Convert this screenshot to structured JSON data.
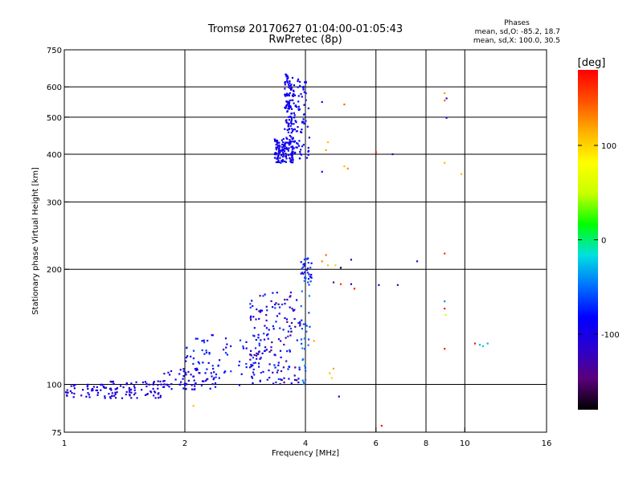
{
  "chart_data": {
    "type": "scatter",
    "title": "Tromsø 20170627 01:04:00-01:05:43",
    "subtitle": "RwPretec (8p)",
    "stats": {
      "heading": "Phases",
      "line1": "mean, sd,O: -85.2, 18.7",
      "line2": "mean, sd,X: 100.0, 30.5"
    },
    "xlabel": "Frequency [MHz]",
    "ylabel": "Stationary phase Virtual Height [km]",
    "x_scale": "log",
    "y_scale": "log",
    "xlim": [
      1,
      16
    ],
    "ylim": [
      75,
      750
    ],
    "x_ticks": [
      {
        "value": 1,
        "label": "1"
      },
      {
        "value": 2,
        "label": "2"
      },
      {
        "value": 4,
        "label": "4"
      },
      {
        "value": 6,
        "label": "6"
      },
      {
        "value": 8,
        "label": "8"
      },
      {
        "value": 10,
        "label": "10"
      },
      {
        "value": 16,
        "label": "16"
      }
    ],
    "y_ticks": [
      {
        "value": 75,
        "label": "75"
      },
      {
        "value": 100,
        "label": "100"
      },
      {
        "value": 200,
        "label": "200"
      },
      {
        "value": 300,
        "label": "300"
      },
      {
        "value": 400,
        "label": "400"
      },
      {
        "value": 500,
        "label": "500"
      },
      {
        "value": 600,
        "label": "600"
      },
      {
        "value": 750,
        "label": "750"
      }
    ],
    "x_gridlines": [
      2,
      4,
      6,
      8,
      10
    ],
    "y_gridlines": [
      100,
      200,
      300,
      400,
      500,
      600
    ],
    "grid": true,
    "colorbar": {
      "title": "[deg]",
      "range": [
        -180,
        180
      ],
      "ticks": [
        {
          "value": 100,
          "label": "100"
        },
        {
          "value": 0,
          "label": "0"
        },
        {
          "value": -100,
          "label": "-100"
        }
      ],
      "colors": [
        "#000000",
        "#5a007a",
        "#2a00d0",
        "#0000ff",
        "#0070ff",
        "#00e0e0",
        "#00ff00",
        "#c8ff00",
        "#ffff00",
        "#ffb000",
        "#ff5000",
        "#ff0000"
      ]
    },
    "clusters": [
      {
        "f": [
          1.0,
          1.35
        ],
        "h": [
          92,
          100
        ],
        "phase": [
          -110,
          -95
        ],
        "n": 50
      },
      {
        "f": [
          1.3,
          1.75
        ],
        "h": [
          92,
          102
        ],
        "phase": [
          -115,
          -95
        ],
        "n": 70
      },
      {
        "f": [
          1.75,
          2.4
        ],
        "h": [
          97,
          110
        ],
        "phase": [
          -115,
          -85
        ],
        "n": 55
      },
      {
        "f": [
          2.0,
          3.1
        ],
        "h": [
          98,
          135
        ],
        "phase": [
          -110,
          -60
        ],
        "n": 85
      },
      {
        "f": [
          2.9,
          3.9
        ],
        "h": [
          100,
          175
        ],
        "phase": [
          -150,
          -60
        ],
        "n": 160
      },
      {
        "f": [
          3.35,
          3.75
        ],
        "h": [
          380,
          440
        ],
        "phase": [
          -110,
          -80
        ],
        "n": 140
      },
      {
        "f": [
          3.55,
          3.75
        ],
        "h": [
          440,
          650
        ],
        "phase": [
          -105,
          -80
        ],
        "n": 110
      },
      {
        "f": [
          3.75,
          4.1
        ],
        "h": [
          390,
          630
        ],
        "phase": [
          -100,
          -75
        ],
        "n": 70
      },
      {
        "f": [
          3.9,
          4.15
        ],
        "h": [
          185,
          215
        ],
        "phase": [
          -110,
          -60
        ],
        "n": 30
      },
      {
        "f": [
          3.9,
          4.1
        ],
        "h": [
          100,
          190
        ],
        "phase": [
          -70,
          -40
        ],
        "n": 30
      }
    ],
    "points": [
      {
        "f": 4.4,
        "h": 548,
        "phase": -120
      },
      {
        "f": 5.0,
        "h": 540,
        "phase": 140
      },
      {
        "f": 4.4,
        "h": 360,
        "phase": -110
      },
      {
        "f": 4.5,
        "h": 410,
        "phase": 120
      },
      {
        "f": 4.55,
        "h": 430,
        "phase": 110
      },
      {
        "f": 5.0,
        "h": 372,
        "phase": 110
      },
      {
        "f": 5.1,
        "h": 367,
        "phase": 130
      },
      {
        "f": 6.0,
        "h": 405,
        "phase": 170
      },
      {
        "f": 6.6,
        "h": 400,
        "phase": -110
      },
      {
        "f": 4.4,
        "h": 210,
        "phase": 130
      },
      {
        "f": 4.5,
        "h": 218,
        "phase": 140
      },
      {
        "f": 4.55,
        "h": 205,
        "phase": 110
      },
      {
        "f": 4.75,
        "h": 205,
        "phase": 100
      },
      {
        "f": 4.9,
        "h": 202,
        "phase": -170
      },
      {
        "f": 5.2,
        "h": 212,
        "phase": -110
      },
      {
        "f": 4.7,
        "h": 185,
        "phase": -140
      },
      {
        "f": 4.9,
        "h": 183,
        "phase": 160
      },
      {
        "f": 5.2,
        "h": 183,
        "phase": -110
      },
      {
        "f": 5.3,
        "h": 178,
        "phase": 170
      },
      {
        "f": 6.1,
        "h": 182,
        "phase": -110
      },
      {
        "f": 6.8,
        "h": 182,
        "phase": -130
      },
      {
        "f": 7.6,
        "h": 210,
        "phase": -120
      },
      {
        "f": 4.2,
        "h": 130,
        "phase": 120
      },
      {
        "f": 4.6,
        "h": 107,
        "phase": 110
      },
      {
        "f": 4.7,
        "h": 110,
        "phase": 120
      },
      {
        "f": 4.65,
        "h": 104,
        "phase": 100
      },
      {
        "f": 4.85,
        "h": 93,
        "phase": -100
      },
      {
        "f": 6.2,
        "h": 78,
        "phase": 170
      },
      {
        "f": 2.1,
        "h": 88,
        "phase": 110
      },
      {
        "f": 8.9,
        "h": 578,
        "phase": 120
      },
      {
        "f": 8.9,
        "h": 553,
        "phase": 140
      },
      {
        "f": 9.0,
        "h": 560,
        "phase": -120
      },
      {
        "f": 9.0,
        "h": 498,
        "phase": -110
      },
      {
        "f": 8.9,
        "h": 380,
        "phase": 110
      },
      {
        "f": 9.8,
        "h": 355,
        "phase": 110
      },
      {
        "f": 8.9,
        "h": 220,
        "phase": 160
      },
      {
        "f": 8.9,
        "h": 165,
        "phase": -40
      },
      {
        "f": 8.9,
        "h": 158,
        "phase": 170
      },
      {
        "f": 8.95,
        "h": 152,
        "phase": 60
      },
      {
        "f": 8.9,
        "h": 124,
        "phase": 170
      },
      {
        "f": 10.6,
        "h": 128,
        "phase": 170
      },
      {
        "f": 10.9,
        "h": 127,
        "phase": -30
      },
      {
        "f": 11.1,
        "h": 126,
        "phase": -20
      },
      {
        "f": 11.4,
        "h": 128,
        "phase": -30
      }
    ]
  }
}
